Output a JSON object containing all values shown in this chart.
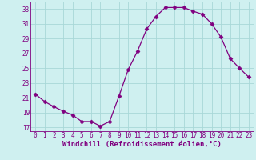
{
  "x": [
    0,
    1,
    2,
    3,
    4,
    5,
    6,
    7,
    8,
    9,
    10,
    11,
    12,
    13,
    14,
    15,
    16,
    17,
    18,
    19,
    20,
    21,
    22,
    23
  ],
  "y": [
    21.5,
    20.5,
    19.8,
    19.2,
    18.7,
    17.8,
    17.8,
    17.2,
    17.8,
    21.2,
    24.8,
    27.3,
    30.3,
    32.0,
    33.2,
    33.2,
    33.2,
    32.7,
    32.3,
    31.0,
    29.2,
    26.3,
    25.0,
    23.8
  ],
  "xlim": [
    -0.5,
    23.5
  ],
  "ylim": [
    16.5,
    34
  ],
  "yticks": [
    17,
    19,
    21,
    23,
    25,
    27,
    29,
    31,
    33
  ],
  "xticks": [
    0,
    1,
    2,
    3,
    4,
    5,
    6,
    7,
    8,
    9,
    10,
    11,
    12,
    13,
    14,
    15,
    16,
    17,
    18,
    19,
    20,
    21,
    22,
    23
  ],
  "xlabel": "Windchill (Refroidissement éolien,°C)",
  "line_color": "#800080",
  "marker": "D",
  "markersize": 2.5,
  "bg_color": "#cff0f0",
  "grid_color": "#a8d8d8",
  "tick_fontsize": 5.5,
  "xlabel_fontsize": 6.5
}
